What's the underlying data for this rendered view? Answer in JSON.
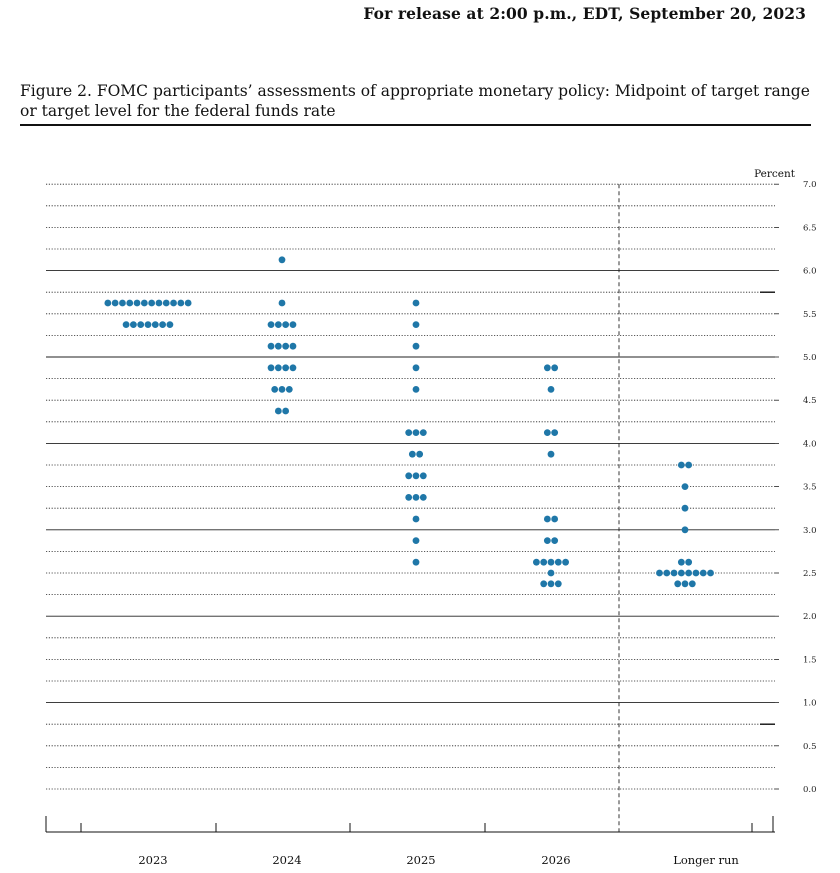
{
  "header": {
    "release": "For release at 2:00 p.m., EDT, September 20, 2023",
    "figure_title_line1": "Figure 2.  FOMC participants’ assessments of appropriate monetary policy:  Midpoint of target range",
    "figure_title_line2": "or target level for the federal funds rate"
  },
  "chart_data": {
    "type": "scatter",
    "style": "dot plot",
    "ylabel": "Percent",
    "ylim": [
      0.0,
      7.0
    ],
    "yticks": [
      "0.0",
      "0.5",
      "1.0",
      "1.5",
      "2.0",
      "2.5",
      "3.0",
      "3.5",
      "4.0",
      "4.5",
      "5.0",
      "5.5",
      "6.0",
      "6.5",
      "7.0"
    ],
    "grid": "dotted horizontal lines every 0.25; solid lines at integers",
    "dot_color": "#1f77a8",
    "categories": [
      "2023",
      "2024",
      "2025",
      "2026",
      "Longer run"
    ],
    "separator_before": "Longer run",
    "series": [
      {
        "category": "2023",
        "points": [
          {
            "y": 5.625,
            "count": 12
          },
          {
            "y": 5.375,
            "count": 7
          }
        ]
      },
      {
        "category": "2024",
        "points": [
          {
            "y": 6.125,
            "count": 1
          },
          {
            "y": 5.625,
            "count": 1
          },
          {
            "y": 5.375,
            "count": 4
          },
          {
            "y": 5.125,
            "count": 4
          },
          {
            "y": 4.875,
            "count": 4
          },
          {
            "y": 4.625,
            "count": 3
          },
          {
            "y": 4.375,
            "count": 2
          }
        ]
      },
      {
        "category": "2025",
        "points": [
          {
            "y": 5.625,
            "count": 1
          },
          {
            "y": 5.375,
            "count": 1
          },
          {
            "y": 5.125,
            "count": 1
          },
          {
            "y": 4.875,
            "count": 1
          },
          {
            "y": 4.625,
            "count": 1
          },
          {
            "y": 4.125,
            "count": 3
          },
          {
            "y": 3.875,
            "count": 2
          },
          {
            "y": 3.625,
            "count": 3
          },
          {
            "y": 3.375,
            "count": 3
          },
          {
            "y": 3.125,
            "count": 1
          },
          {
            "y": 2.875,
            "count": 1
          },
          {
            "y": 2.625,
            "count": 1
          }
        ]
      },
      {
        "category": "2026",
        "points": [
          {
            "y": 4.875,
            "count": 2
          },
          {
            "y": 4.625,
            "count": 1
          },
          {
            "y": 4.125,
            "count": 2
          },
          {
            "y": 3.875,
            "count": 1
          },
          {
            "y": 3.125,
            "count": 2
          },
          {
            "y": 2.875,
            "count": 2
          },
          {
            "y": 2.625,
            "count": 5
          },
          {
            "y": 2.5,
            "count": 1
          },
          {
            "y": 2.375,
            "count": 3
          }
        ]
      },
      {
        "category": "Longer run",
        "points": [
          {
            "y": 3.75,
            "count": 2
          },
          {
            "y": 3.5,
            "count": 1
          },
          {
            "y": 3.25,
            "count": 1
          },
          {
            "y": 3.0,
            "count": 1
          },
          {
            "y": 2.625,
            "count": 2
          },
          {
            "y": 2.5,
            "count": 8
          },
          {
            "y": 2.375,
            "count": 3
          }
        ]
      }
    ]
  }
}
